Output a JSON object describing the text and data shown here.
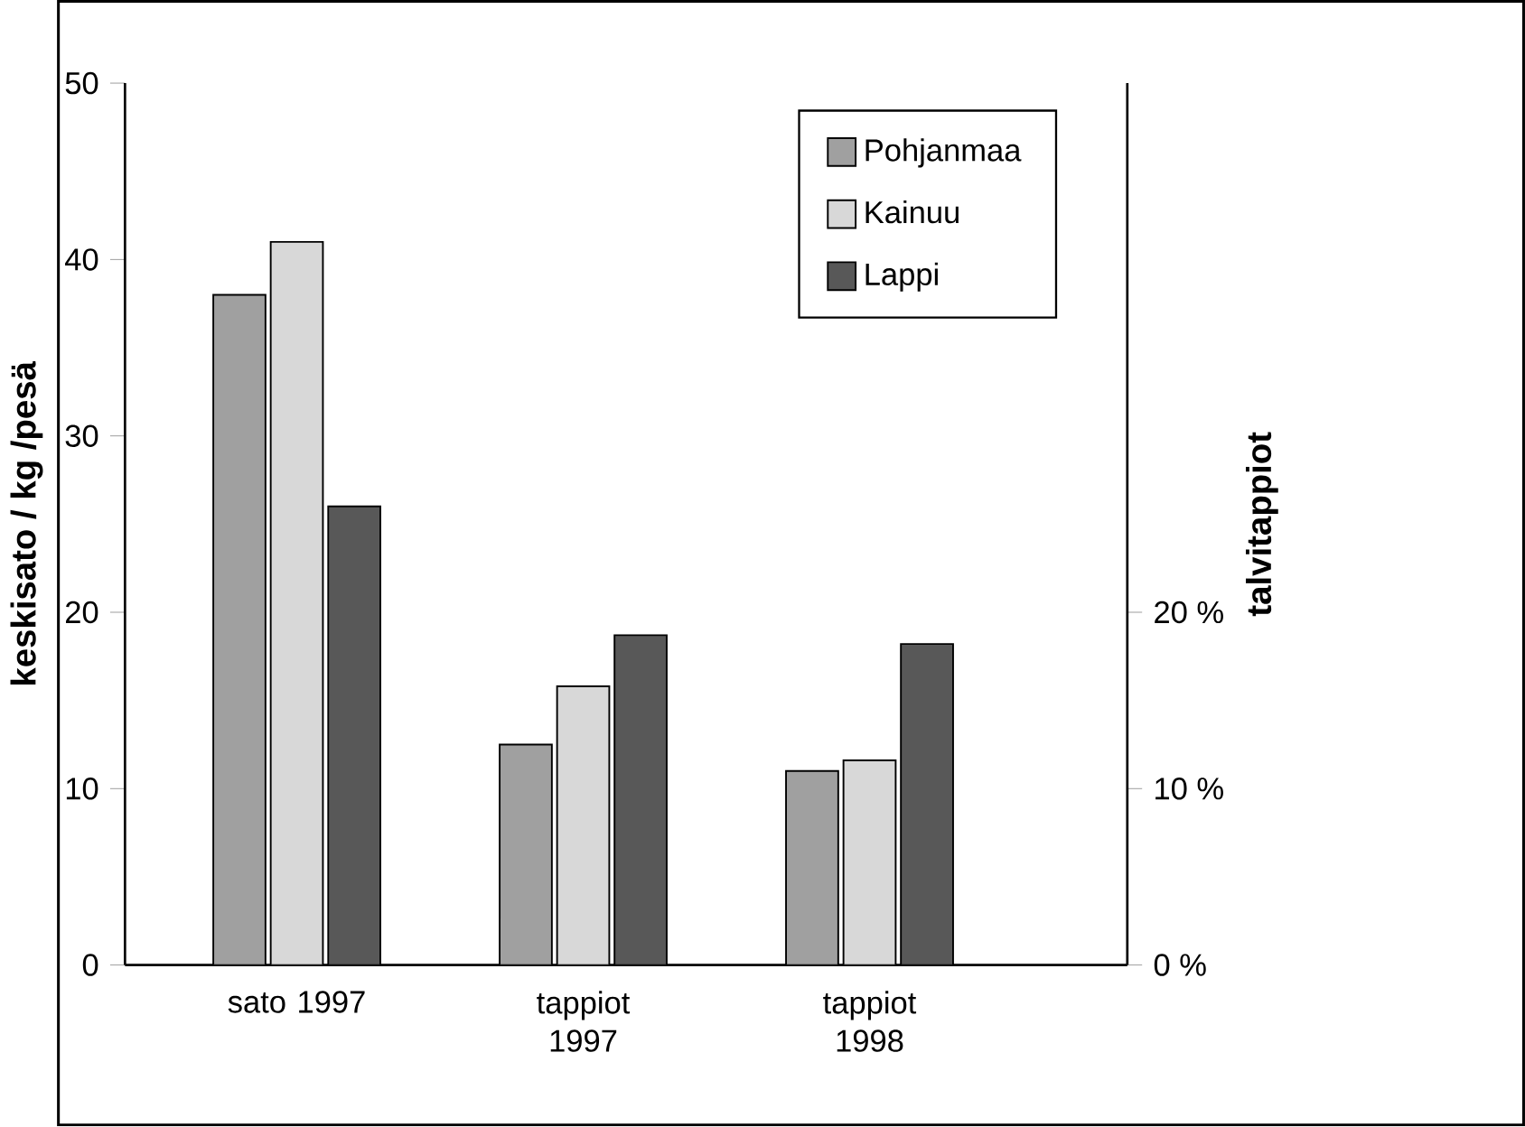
{
  "chart_data": {
    "type": "bar",
    "ylabel": "keskisato / kg /pesä",
    "y2label": "talvitappiot",
    "categories": [
      "sato 1997",
      "tappiot 1997",
      "tappiot 1998"
    ],
    "series": [
      {
        "name": "Pohjanmaa",
        "color": "#a0a0a0",
        "values": [
          38,
          12.5,
          11
        ]
      },
      {
        "name": "Kainuu",
        "color": "#d8d8d8",
        "values": [
          41,
          15.8,
          11.6
        ]
      },
      {
        "name": "Lappi",
        "color": "#585858",
        "values": [
          26,
          18.7,
          18.2
        ]
      }
    ],
    "ylim": [
      0,
      50
    ],
    "yticks": [
      0,
      10,
      20,
      30,
      40,
      50
    ],
    "y2lim": [
      0,
      50
    ],
    "y2ticks": [
      {
        "value": 0,
        "label": "0 %"
      },
      {
        "value": 10,
        "label": "10 %"
      },
      {
        "value": 20,
        "label": "20 %"
      }
    ],
    "legend": "top right",
    "grid": false
  }
}
